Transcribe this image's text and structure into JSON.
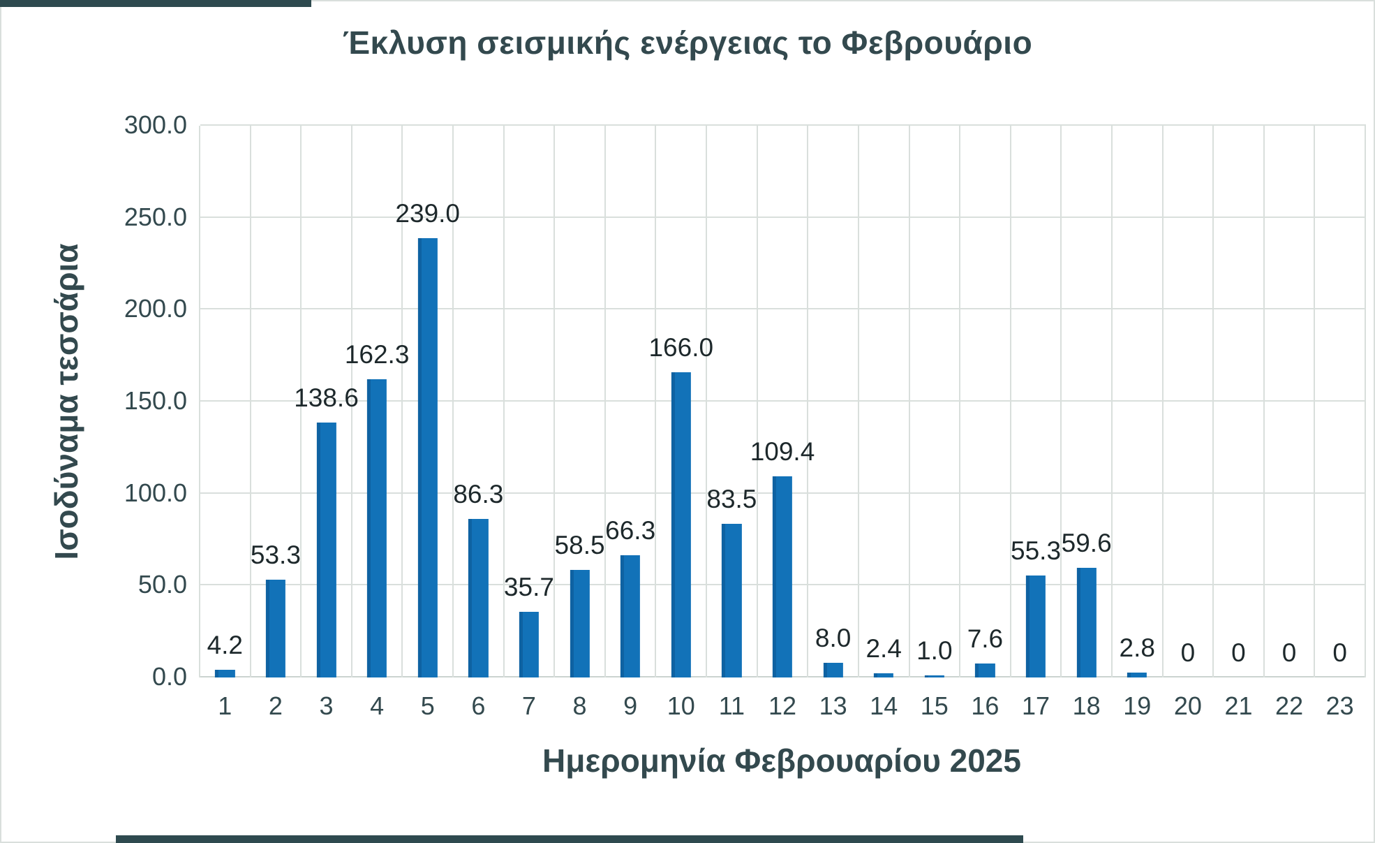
{
  "chart_data": {
    "type": "bar",
    "title": "Έκλυση σεισμικής ενέργειας το Φεβρουάριο",
    "xlabel": "Ημερομηνία Φεβρουαρίου 2025",
    "ylabel": "Ισοδύναμα τεσσάρια",
    "categories": [
      "1",
      "2",
      "3",
      "4",
      "5",
      "6",
      "7",
      "8",
      "9",
      "10",
      "11",
      "12",
      "13",
      "14",
      "15",
      "16",
      "17",
      "18",
      "19",
      "20",
      "21",
      "22",
      "23"
    ],
    "values": [
      4.2,
      53.3,
      138.6,
      162.3,
      239.0,
      86.3,
      35.7,
      58.5,
      66.3,
      166.0,
      83.5,
      109.4,
      8.0,
      2.4,
      1.0,
      7.6,
      55.3,
      59.6,
      2.8,
      0,
      0,
      0,
      0
    ],
    "data_labels": [
      "4.2",
      "53.3",
      "138.6",
      "162.3",
      "239.0",
      "86.3",
      "35.7",
      "58.5",
      "66.3",
      "166.0",
      "83.5",
      "109.4",
      "8.0",
      "2.4",
      "1.0",
      "7.6",
      "55.3",
      "59.6",
      "2.8",
      "0",
      "0",
      "0",
      "0"
    ],
    "ylim": [
      0,
      300
    ],
    "ytick_labels": [
      "0.0",
      "50.0",
      "100.0",
      "150.0",
      "200.0",
      "250.0",
      "300.0"
    ],
    "grid": true,
    "legend_position": "none",
    "colors": {
      "bar": "#1272B8",
      "bar_edge": "#0E62A2",
      "gridline": "#D9DFDC",
      "axis_text": "#33494E",
      "data_label_text": "#1D282B",
      "edge_accent": "#2E4A4F",
      "background": "#FFFFFF"
    }
  }
}
